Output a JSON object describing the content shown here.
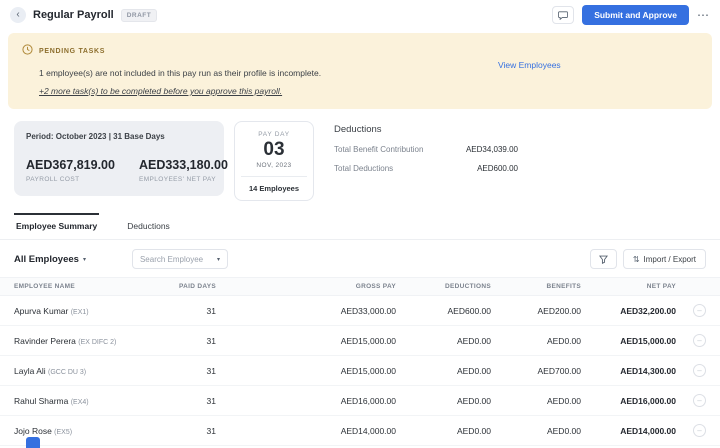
{
  "icons": {
    "back": "‹",
    "more": "⋯",
    "caret": "▾"
  },
  "header": {
    "title": "Regular Payroll",
    "status_badge": "DRAFT",
    "submit_label": "Submit and Approve"
  },
  "banner": {
    "title": "PENDING TASKS",
    "line1": "1 employee(s) are not included in this pay run as their profile is incomplete.",
    "more_tasks_link": "+2 more task(s) to be completed before you approve this payroll.",
    "view_employees": "View Employees"
  },
  "summary": {
    "period_label": "Period: October 2023 | 31 Base Days",
    "payroll_cost": "AED367,819.00",
    "payroll_cost_label": "PAYROLL COST",
    "employees_net_pay": "AED333,180.00",
    "employees_net_pay_label": "EMPLOYEES' NET PAY",
    "payday": {
      "label": "PAY DAY",
      "day": "03",
      "month": "NOV, 2023",
      "employees": "14 Employees"
    },
    "deductions": {
      "title": "Deductions",
      "rows": [
        {
          "label": "Total Benefit Contribution",
          "value": "AED34,039.00"
        },
        {
          "label": "Total Deductions",
          "value": "AED600.00"
        }
      ]
    }
  },
  "tabs": [
    {
      "label": "Employee Summary",
      "active": true
    },
    {
      "label": "Deductions",
      "active": false
    }
  ],
  "toolbar": {
    "all_employees": "All Employees",
    "search_placeholder": "Search Employee",
    "import_export": "Import / Export"
  },
  "table": {
    "columns": [
      "EMPLOYEE NAME",
      "PAID DAYS",
      "GROSS PAY",
      "DEDUCTIONS",
      "BENEFITS",
      "NET PAY"
    ],
    "rows": [
      {
        "name": "Apurva Kumar",
        "code": "(EX1)",
        "paid_days": "31",
        "gross": "AED33,000.00",
        "deductions": "AED600.00",
        "benefits": "AED200.00",
        "net": "AED32,200.00"
      },
      {
        "name": "Ravinder Perera",
        "code": "(EX DIFC 2)",
        "paid_days": "31",
        "gross": "AED15,000.00",
        "deductions": "AED0.00",
        "benefits": "AED0.00",
        "net": "AED15,000.00"
      },
      {
        "name": "Layla Ali",
        "code": "(GCC DU 3)",
        "paid_days": "31",
        "gross": "AED15,000.00",
        "deductions": "AED0.00",
        "benefits": "AED700.00",
        "net": "AED14,300.00"
      },
      {
        "name": "Rahul Sharma",
        "code": "(EX4)",
        "paid_days": "31",
        "gross": "AED16,000.00",
        "deductions": "AED0.00",
        "benefits": "AED0.00",
        "net": "AED16,000.00"
      },
      {
        "name": "Jojo Rose",
        "code": "(EX5)",
        "paid_days": "31",
        "gross": "AED14,000.00",
        "deductions": "AED0.00",
        "benefits": "AED0.00",
        "net": "AED14,000.00"
      }
    ]
  },
  "colors": {
    "accent_blue": "#3570e0",
    "banner_bg": "#fbf2db",
    "banner_title_text": "#8d6f2e",
    "link_blue": "#3570e0",
    "card_gray": "#edeff3"
  }
}
